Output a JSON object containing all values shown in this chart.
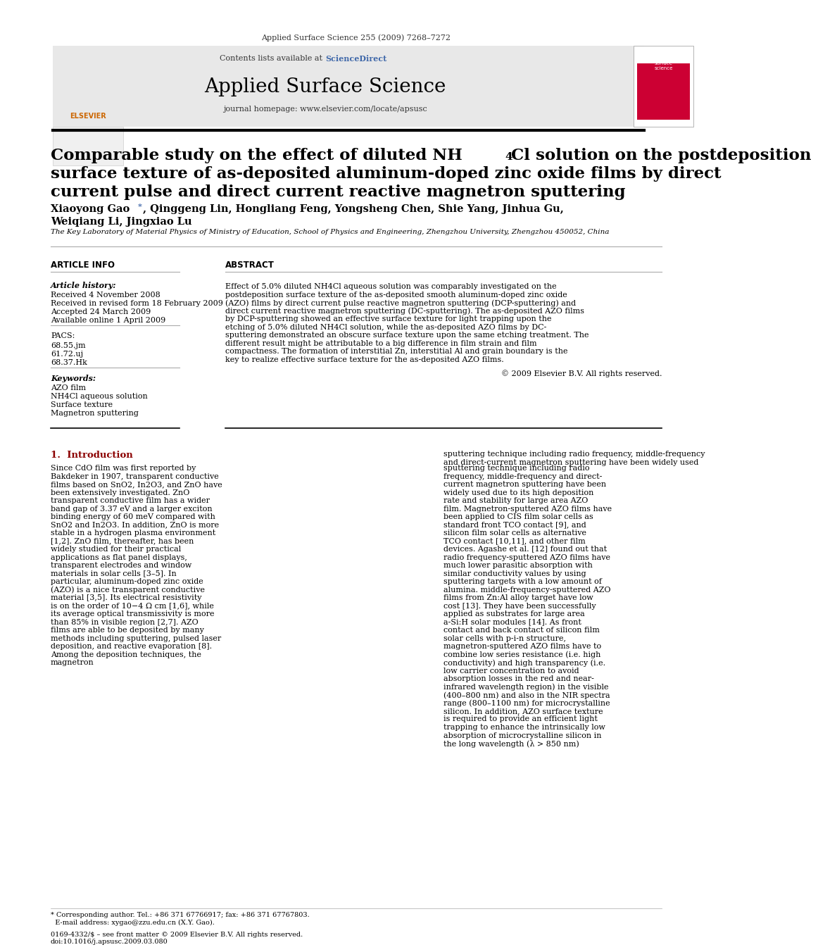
{
  "page_bg": "#ffffff",
  "header_journal_ref": "Applied Surface Science 255 (2009) 7268–7272",
  "header_contents": "Contents lists available at",
  "header_sciencedirect": "ScienceDirect",
  "header_journal_name": "Applied Surface Science",
  "header_journal_url": "journal homepage: www.elsevier.com/locate/apsusc",
  "header_bg": "#e8e8e8",
  "paper_title_line1": "Comparable study on the effect of diluted NH",
  "paper_title_sub": "4",
  "paper_title_line1b": "Cl solution on the postdeposition",
  "paper_title_line2": "surface texture of as-deposited aluminum-doped zinc oxide films by direct",
  "paper_title_line3": "current pulse and direct current reactive magnetron sputtering",
  "authors": "Xiaoyong Gao *, Qinggeng Lin, Hongliang Feng, Yongsheng Chen, Shie Yang, Jinhua Gu,\nWeiqiang Li, Jingxiao Lu",
  "affiliation": "The Key Laboratory of Material Physics of Ministry of Education, School of Physics and Engineering, Zhengzhou University, Zhengzhou 450052, China",
  "section_article_info": "ARTICLE INFO",
  "article_history_label": "Article history:",
  "received": "Received 4 November 2008",
  "received_revised": "Received in revised form 18 February 2009",
  "accepted": "Accepted 24 March 2009",
  "available": "Available online 1 April 2009",
  "pacs_label": "PACS:",
  "pacs1": "68.55.jm",
  "pacs2": "61.72.uj",
  "pacs3": "68.37.Hk",
  "keywords_label": "Keywords:",
  "keyword1": "AZO film",
  "keyword2": "NH4Cl aqueous solution",
  "keyword3": "Surface texture",
  "keyword4": "Magnetron sputtering",
  "section_abstract": "ABSTRACT",
  "abstract_text": "Effect of 5.0% diluted NH4Cl aqueous solution was comparably investigated on the postdeposition surface texture of the as-deposited smooth aluminum-doped zinc oxide (AZO) films by direct current pulse reactive magnetron sputtering (DCP-sputtering) and direct current reactive magnetron sputtering (DC-sputtering). The as-deposited AZO films by DCP-sputtering showed an effective surface texture for light trapping upon the etching of 5.0% diluted NH4Cl solution, while the as-deposited AZO films by DC-sputtering demonstrated an obscure surface texture upon the same etching treatment. The different result might be attributable to a big difference in film strain and film compactness. The formation of interstitial Zn, interstitial Al and grain boundary is the key to realize effective surface texture for the as-deposited AZO films.",
  "copyright": "© 2009 Elsevier B.V. All rights reserved.",
  "intro_heading": "1.  Introduction",
  "intro_col1": "Since CdO film was first reported by Bakdeker in 1907, transparent conductive films based on SnO2, In2O3, and ZnO have been extensively investigated. ZnO transparent conductive film has a wider band gap of 3.37 eV and a larger exciton binding energy of 60 meV compared with SnO2 and In2O3. In addition, ZnO is more stable in a hydrogen plasma environment [1,2]. ZnO film, thereafter, has been widely studied for their practical applications as flat panel displays, transparent electrodes and window materials in solar cells [3–5]. In particular, aluminum-doped zinc oxide (AZO) is a nice transparent conductive material [3,5]. Its electrical resistivity is on the order of 10−4 Ω cm [1,6], while its average optical transmissivity is more than 85% in visible region [2,7]. AZO films are able to be deposited by many methods including sputtering, pulsed laser deposition, and reactive evaporation [8]. Among the deposition techniques, the magnetron",
  "intro_col2": "sputtering technique including radio frequency, middle-frequency and direct-current magnetron sputtering have been widely used due to its high deposition rate and stability for large area AZO film. Magnetron-sputtered AZO films have been applied to CIS film solar cells as standard front TCO contact [9], and silicon film solar cells as alternative TCO contact [10,11], and other film devices. Agashe et al. [12] found out that radio frequency-sputtered AZO films have much lower parasitic absorption with similar conductivity values by using sputtering targets with a low amount of alumina. middle-frequency-sputtered AZO films from Zn:Al alloy target have low cost [13]. They have been successfully applied as substrates for large area a-Si:H solar modules [14]. As front contact and back contact of silicon film solar cells with p-i-n structure, magnetron-sputtered AZO films have to combine low series resistance (i.e. high conductivity) and high transparency (i.e. low carrier concentration to avoid absorption losses in the red and near-infrared wavelength region) in the visible (400–800 nm) and also in the NIR spectra range (800–1100 nm) for microcrystalline silicon. In addition, AZO surface texture is required to provide an efficient light trapping to enhance the intrinsically low absorption of microcrystalline silicon in the long wavelength (λ > 850 nm)",
  "footer_text": "0169-4332/$ – see front matter © 2009 Elsevier B.V. All rights reserved.\ndoi:10.1016/j.apsusc.2009.03.080",
  "footnote": "* Corresponding author. Tel.: +86 371 67766917; fax: +86 371 67767803.\n  E-mail address: xygao@zzu.edu.cn (X.Y. Gao).",
  "sciencedirect_color": "#4169aa",
  "intro_color": "#8B0000",
  "title_color": "#000000",
  "text_color": "#000000",
  "label_color": "#4169aa"
}
